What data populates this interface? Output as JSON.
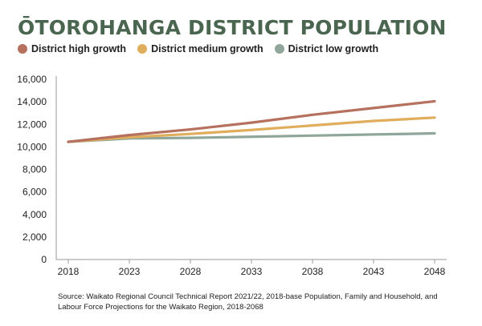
{
  "title": "ŌTOROHANGA DISTRICT POPULATION",
  "source": "Source: Waikato Regional Council Technical Report 2021/22, 2018-base Population, Family and Household, and Labour Force Projections for the Waikato Region, 2018-2068",
  "chart_data": {
    "type": "line",
    "title": "ŌTOROHANGA DISTRICT POPULATION",
    "xlabel": "",
    "ylabel": "",
    "x": [
      2018,
      2023,
      2028,
      2033,
      2038,
      2043,
      2048
    ],
    "ylim": [
      0,
      16000
    ],
    "yticks": [
      0,
      2000,
      4000,
      6000,
      8000,
      10000,
      12000,
      14000,
      16000
    ],
    "ytick_labels": [
      "0",
      "2,000",
      "4,000",
      "6,000",
      "8,000",
      "10,000",
      "12,000",
      "14,000",
      "16,000"
    ],
    "xtick_labels": [
      "2018",
      "2023",
      "2028",
      "2033",
      "2038",
      "2043",
      "2048"
    ],
    "grid": false,
    "legend_position": "top-left",
    "series": [
      {
        "name": "District high growth",
        "color": "#b5705e",
        "values": [
          10450,
          11050,
          11550,
          12150,
          12850,
          13450,
          14050
        ]
      },
      {
        "name": "District medium growth",
        "color": "#e0ad5c",
        "values": [
          10450,
          10850,
          11150,
          11500,
          11900,
          12300,
          12600
        ]
      },
      {
        "name": "District low growth",
        "color": "#8fa69a",
        "values": [
          10450,
          10750,
          10800,
          10900,
          11000,
          11100,
          11200
        ]
      }
    ]
  }
}
